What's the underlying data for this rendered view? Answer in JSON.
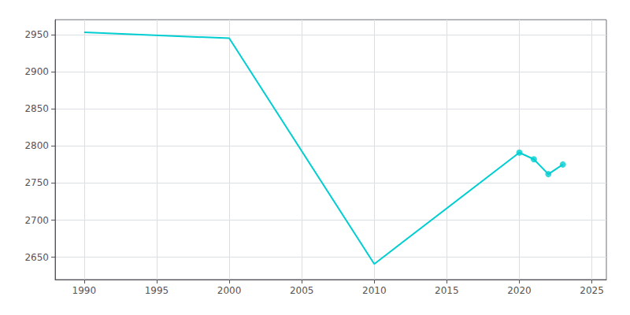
{
  "chart_data": {
    "type": "line",
    "x": [
      1990,
      2000,
      2010,
      2020,
      2021,
      2022,
      2023
    ],
    "series": [
      {
        "color": "#00CED1",
        "values": [
          2953,
          2945,
          2641,
          2791,
          2782,
          2762,
          2775
        ]
      },
      {
        "type": "scatter",
        "marker": "circle",
        "color": "#00CED1",
        "values": [
          null,
          null,
          null,
          2791,
          2782,
          2762,
          2775
        ]
      }
    ],
    "xlim": [
      1988,
      2026
    ],
    "ylim": [
      2620,
      2970
    ],
    "xticks": [
      1990,
      1995,
      2000,
      2005,
      2010,
      2015,
      2020,
      2025
    ],
    "yticks": [
      2650,
      2700,
      2750,
      2800,
      2850,
      2900,
      2950
    ],
    "grid": true
  }
}
